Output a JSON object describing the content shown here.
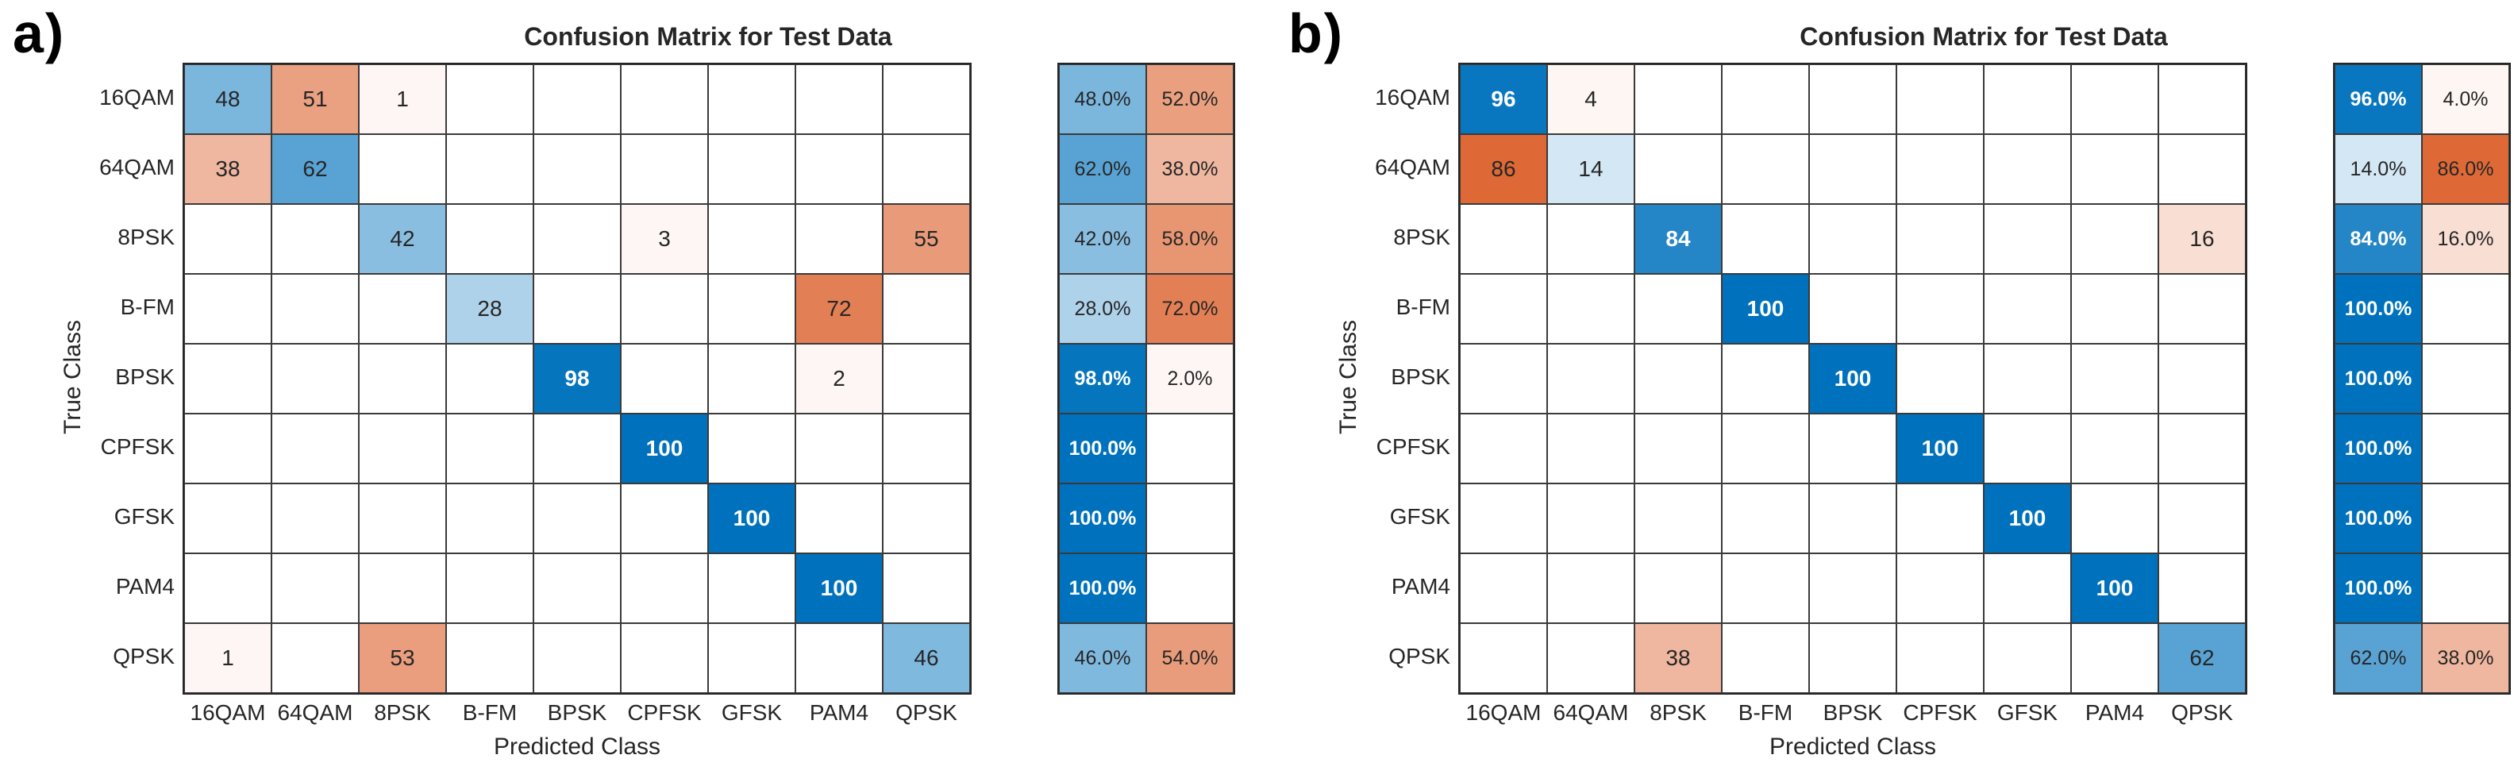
{
  "style": {
    "diagonal_color": "#0072BD",
    "off_diagonal_color": "#D95319",
    "grid_line_color": "#262626",
    "text_color": "#262626",
    "white_text_color": "#FFFFFF",
    "white_text_threshold": 84,
    "background": "#FFFFFF"
  },
  "chart_data": [
    {
      "type": "heatmap",
      "panel_label": "a)",
      "title": "Confusion Matrix for Test Data",
      "xlabel": "Predicted Class",
      "ylabel": "True Class",
      "classes": [
        "16QAM",
        "64QAM",
        "8PSK",
        "B-FM",
        "BPSK",
        "CPFSK",
        "GFSK",
        "PAM4",
        "QPSK"
      ],
      "matrix": [
        [
          48,
          51,
          1,
          0,
          0,
          0,
          0,
          0,
          0
        ],
        [
          38,
          62,
          0,
          0,
          0,
          0,
          0,
          0,
          0
        ],
        [
          0,
          0,
          42,
          0,
          0,
          3,
          0,
          0,
          55
        ],
        [
          0,
          0,
          0,
          28,
          0,
          0,
          0,
          72,
          0
        ],
        [
          0,
          0,
          0,
          0,
          98,
          0,
          0,
          2,
          0
        ],
        [
          0,
          0,
          0,
          0,
          0,
          100,
          0,
          0,
          0
        ],
        [
          0,
          0,
          0,
          0,
          0,
          0,
          100,
          0,
          0
        ],
        [
          0,
          0,
          0,
          0,
          0,
          0,
          0,
          100,
          0
        ],
        [
          1,
          0,
          53,
          0,
          0,
          0,
          0,
          0,
          46
        ]
      ],
      "row_summary_percent": [
        [
          48.0,
          52.0
        ],
        [
          62.0,
          38.0
        ],
        [
          42.0,
          58.0
        ],
        [
          28.0,
          72.0
        ],
        [
          98.0,
          2.0
        ],
        [
          100.0,
          null
        ],
        [
          100.0,
          null
        ],
        [
          100.0,
          null
        ],
        [
          46.0,
          54.0
        ]
      ]
    },
    {
      "type": "heatmap",
      "panel_label": "b)",
      "title": "Confusion Matrix for Test Data",
      "xlabel": "Predicted Class",
      "ylabel": "True Class",
      "classes": [
        "16QAM",
        "64QAM",
        "8PSK",
        "B-FM",
        "BPSK",
        "CPFSK",
        "GFSK",
        "PAM4",
        "QPSK"
      ],
      "matrix": [
        [
          96,
          4,
          0,
          0,
          0,
          0,
          0,
          0,
          0
        ],
        [
          86,
          14,
          0,
          0,
          0,
          0,
          0,
          0,
          0
        ],
        [
          0,
          0,
          84,
          0,
          0,
          0,
          0,
          0,
          16
        ],
        [
          0,
          0,
          0,
          100,
          0,
          0,
          0,
          0,
          0
        ],
        [
          0,
          0,
          0,
          0,
          100,
          0,
          0,
          0,
          0
        ],
        [
          0,
          0,
          0,
          0,
          0,
          100,
          0,
          0,
          0
        ],
        [
          0,
          0,
          0,
          0,
          0,
          0,
          100,
          0,
          0
        ],
        [
          0,
          0,
          0,
          0,
          0,
          0,
          0,
          100,
          0
        ],
        [
          0,
          0,
          38,
          0,
          0,
          0,
          0,
          0,
          62
        ]
      ],
      "row_summary_percent": [
        [
          96.0,
          4.0
        ],
        [
          14.0,
          86.0
        ],
        [
          84.0,
          16.0
        ],
        [
          100.0,
          null
        ],
        [
          100.0,
          null
        ],
        [
          100.0,
          null
        ],
        [
          100.0,
          null
        ],
        [
          100.0,
          null
        ],
        [
          62.0,
          38.0
        ]
      ]
    }
  ]
}
